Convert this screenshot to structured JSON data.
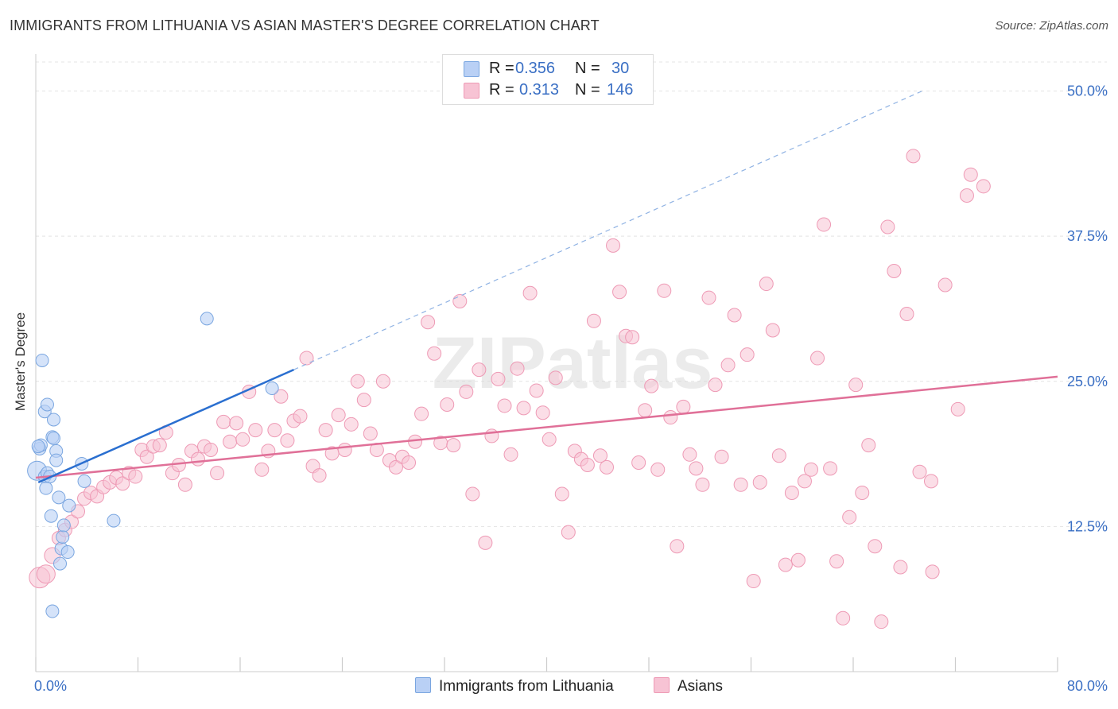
{
  "title": "IMMIGRANTS FROM LITHUANIA VS ASIAN MASTER'S DEGREE CORRELATION CHART",
  "source": "Source: ZipAtlas.com",
  "watermark": "ZIPatlas",
  "legend": {
    "rows": [
      {
        "r_label": "R =",
        "r_value": "0.356",
        "n_label": "N =",
        "n_value": "30",
        "color": "#b9d0f5"
      },
      {
        "r_label": "R =",
        "r_value": "0.313",
        "n_label": "N =",
        "n_value": "146",
        "color": "#f7c3d4"
      }
    ]
  },
  "bottom_legend": [
    "Immigrants from Lithuania",
    "Asians"
  ],
  "chart_data": {
    "type": "scatter",
    "title": "IMMIGRANTS FROM LITHUANIA VS ASIAN MASTER'S DEGREE CORRELATION CHART",
    "xlabel": "",
    "ylabel": "Master's Degree",
    "xlim": [
      0,
      80
    ],
    "ylim": [
      0,
      52.5
    ],
    "x_tick_labels": [
      "0.0%",
      "80.0%"
    ],
    "y_ticks": [
      12.5,
      25.0,
      37.5,
      50.0
    ],
    "y_tick_labels": [
      "12.5%",
      "25.0%",
      "37.5%",
      "50.0%"
    ],
    "grid": true,
    "series": [
      {
        "name": "Immigrants from Lithuania",
        "color": "#b9d0f5",
        "edge": "#7aa6e0",
        "line_color": "#2a6fd0",
        "trend": {
          "x0": 0.2,
          "y0": 16.3,
          "x1": 20.2,
          "y1": 26.0,
          "dash_to_x": 69.4,
          "dash_to_y": 50.0
        },
        "points": [
          [
            0.1,
            17.3
          ],
          [
            0.3,
            19.2
          ],
          [
            0.4,
            19.5
          ],
          [
            0.5,
            26.8
          ],
          [
            0.7,
            22.4
          ],
          [
            0.7,
            16.8
          ],
          [
            0.8,
            15.8
          ],
          [
            0.9,
            23.0
          ],
          [
            0.9,
            17.1
          ],
          [
            1.1,
            16.8
          ],
          [
            1.2,
            13.4
          ],
          [
            1.3,
            20.2
          ],
          [
            1.4,
            21.7
          ],
          [
            1.4,
            20.1
          ],
          [
            1.6,
            19.0
          ],
          [
            1.6,
            18.2
          ],
          [
            1.8,
            15.0
          ],
          [
            1.9,
            9.3
          ],
          [
            2.0,
            10.6
          ],
          [
            2.1,
            11.6
          ],
          [
            2.2,
            12.6
          ],
          [
            2.5,
            10.3
          ],
          [
            2.6,
            14.3
          ],
          [
            3.6,
            17.9
          ],
          [
            3.8,
            16.4
          ],
          [
            6.1,
            13.0
          ],
          [
            13.4,
            30.4
          ],
          [
            18.5,
            24.4
          ],
          [
            1.3,
            5.2
          ],
          [
            0.2,
            19.4
          ]
        ]
      },
      {
        "name": "Asians",
        "color": "#f7c3d4",
        "edge": "#ee9ab5",
        "line_color": "#e07098",
        "trend": {
          "x0": 0.0,
          "y0": 16.7,
          "x1": 80.0,
          "y1": 25.4
        },
        "points": [
          [
            0.3,
            8.1
          ],
          [
            0.8,
            8.4
          ],
          [
            1.3,
            10.0
          ],
          [
            1.8,
            11.5
          ],
          [
            2.3,
            12.2
          ],
          [
            2.8,
            12.9
          ],
          [
            3.3,
            13.8
          ],
          [
            3.8,
            14.9
          ],
          [
            4.3,
            15.4
          ],
          [
            4.8,
            15.1
          ],
          [
            5.3,
            15.9
          ],
          [
            5.8,
            16.3
          ],
          [
            6.3,
            16.7
          ],
          [
            6.8,
            16.2
          ],
          [
            7.3,
            17.1
          ],
          [
            7.8,
            16.8
          ],
          [
            8.3,
            19.1
          ],
          [
            8.7,
            18.5
          ],
          [
            9.2,
            19.4
          ],
          [
            9.7,
            19.5
          ],
          [
            10.2,
            20.6
          ],
          [
            10.7,
            17.1
          ],
          [
            11.2,
            17.8
          ],
          [
            11.7,
            16.1
          ],
          [
            12.2,
            19.0
          ],
          [
            12.7,
            18.3
          ],
          [
            13.2,
            19.4
          ],
          [
            13.7,
            19.1
          ],
          [
            14.2,
            17.1
          ],
          [
            14.7,
            21.5
          ],
          [
            15.2,
            19.8
          ],
          [
            15.7,
            21.4
          ],
          [
            16.2,
            20.0
          ],
          [
            16.7,
            24.1
          ],
          [
            17.2,
            20.8
          ],
          [
            17.7,
            17.4
          ],
          [
            18.2,
            19.0
          ],
          [
            18.7,
            20.8
          ],
          [
            19.2,
            23.7
          ],
          [
            19.7,
            19.9
          ],
          [
            20.2,
            21.6
          ],
          [
            20.7,
            22.0
          ],
          [
            21.2,
            27.0
          ],
          [
            21.7,
            17.7
          ],
          [
            22.2,
            16.9
          ],
          [
            22.7,
            20.8
          ],
          [
            23.2,
            18.8
          ],
          [
            23.7,
            22.1
          ],
          [
            24.2,
            19.1
          ],
          [
            24.7,
            21.3
          ],
          [
            25.2,
            25.0
          ],
          [
            25.7,
            23.4
          ],
          [
            26.2,
            20.5
          ],
          [
            26.7,
            19.1
          ],
          [
            27.2,
            25.0
          ],
          [
            27.7,
            18.2
          ],
          [
            28.2,
            17.6
          ],
          [
            28.7,
            18.5
          ],
          [
            29.2,
            18.0
          ],
          [
            29.7,
            19.8
          ],
          [
            30.2,
            22.2
          ],
          [
            30.7,
            30.1
          ],
          [
            31.2,
            27.4
          ],
          [
            31.7,
            19.7
          ],
          [
            32.2,
            23.0
          ],
          [
            32.7,
            19.5
          ],
          [
            33.2,
            31.9
          ],
          [
            33.7,
            24.1
          ],
          [
            34.2,
            15.3
          ],
          [
            34.7,
            26.0
          ],
          [
            35.2,
            11.1
          ],
          [
            35.7,
            20.3
          ],
          [
            36.2,
            25.2
          ],
          [
            36.7,
            22.9
          ],
          [
            37.2,
            18.7
          ],
          [
            37.7,
            26.1
          ],
          [
            38.2,
            22.7
          ],
          [
            38.7,
            32.6
          ],
          [
            39.2,
            24.2
          ],
          [
            39.7,
            22.3
          ],
          [
            40.2,
            20.0
          ],
          [
            40.7,
            25.3
          ],
          [
            41.2,
            15.3
          ],
          [
            41.7,
            12.0
          ],
          [
            42.2,
            19.0
          ],
          [
            42.7,
            18.3
          ],
          [
            43.2,
            17.8
          ],
          [
            43.7,
            30.2
          ],
          [
            44.2,
            18.6
          ],
          [
            44.7,
            17.6
          ],
          [
            45.2,
            36.7
          ],
          [
            45.7,
            32.7
          ],
          [
            46.2,
            28.9
          ],
          [
            46.7,
            28.8
          ],
          [
            47.2,
            18.0
          ],
          [
            47.7,
            22.5
          ],
          [
            48.2,
            24.6
          ],
          [
            48.7,
            17.4
          ],
          [
            49.2,
            32.8
          ],
          [
            49.7,
            21.9
          ],
          [
            50.2,
            10.8
          ],
          [
            50.7,
            22.8
          ],
          [
            51.2,
            18.7
          ],
          [
            51.7,
            17.5
          ],
          [
            52.2,
            16.1
          ],
          [
            52.7,
            32.2
          ],
          [
            53.2,
            24.7
          ],
          [
            53.7,
            18.5
          ],
          [
            54.2,
            26.4
          ],
          [
            54.7,
            30.7
          ],
          [
            55.2,
            16.1
          ],
          [
            55.7,
            27.3
          ],
          [
            56.2,
            7.8
          ],
          [
            56.7,
            16.3
          ],
          [
            57.2,
            33.4
          ],
          [
            57.7,
            29.4
          ],
          [
            58.2,
            18.6
          ],
          [
            58.7,
            9.2
          ],
          [
            59.2,
            15.4
          ],
          [
            59.7,
            9.6
          ],
          [
            60.2,
            16.4
          ],
          [
            60.7,
            17.4
          ],
          [
            61.2,
            27.0
          ],
          [
            61.7,
            38.5
          ],
          [
            62.2,
            17.5
          ],
          [
            62.7,
            9.5
          ],
          [
            63.2,
            4.6
          ],
          [
            63.7,
            13.3
          ],
          [
            64.2,
            24.7
          ],
          [
            64.7,
            15.4
          ],
          [
            65.2,
            19.5
          ],
          [
            65.7,
            10.8
          ],
          [
            66.2,
            4.3
          ],
          [
            66.7,
            38.3
          ],
          [
            67.2,
            34.5
          ],
          [
            67.7,
            9.0
          ],
          [
            68.2,
            30.8
          ],
          [
            68.7,
            44.4
          ],
          [
            69.2,
            17.2
          ],
          [
            70.2,
            8.6
          ],
          [
            71.2,
            33.3
          ],
          [
            72.2,
            22.6
          ],
          [
            73.2,
            42.8
          ],
          [
            74.2,
            41.8
          ],
          [
            72.9,
            41.0
          ],
          [
            70.1,
            16.4
          ]
        ]
      }
    ]
  }
}
